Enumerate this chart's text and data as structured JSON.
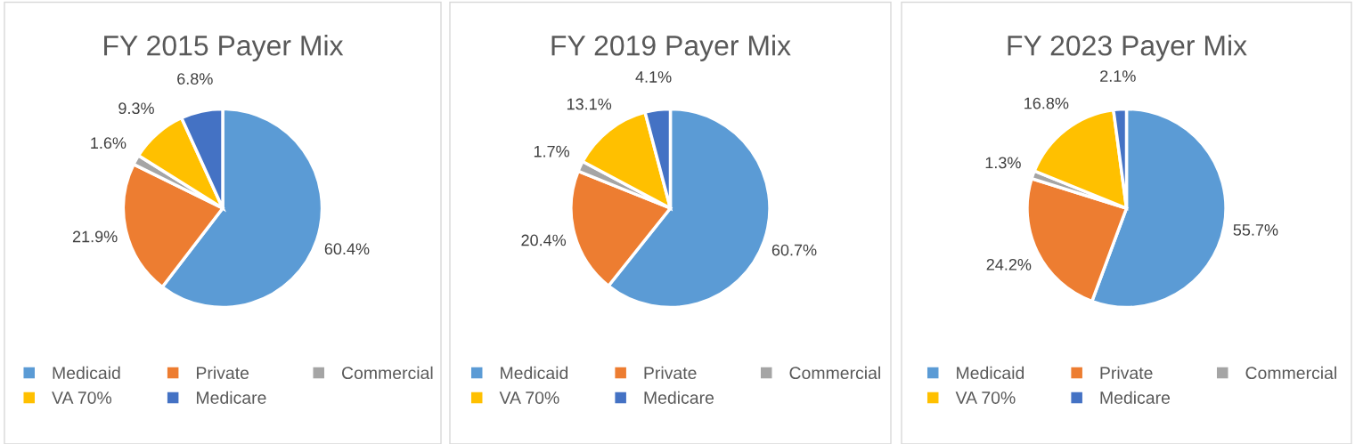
{
  "chart_data": [
    {
      "type": "pie",
      "title": "FY 2015 Payer Mix",
      "categories": [
        "Medicaid",
        "Private",
        "Commercial",
        "VA 70%",
        "Medicare"
      ],
      "values": [
        60.4,
        21.9,
        1.6,
        9.3,
        6.8
      ],
      "colors": [
        "#5b9bd5",
        "#ed7d31",
        "#a5a5a5",
        "#ffc000",
        "#4472c4"
      ],
      "value_labels": [
        "60.4%",
        "21.9%",
        "1.6%",
        "9.3%",
        "6.8%"
      ],
      "legend": "bottom"
    },
    {
      "type": "pie",
      "title": "FY 2019 Payer Mix",
      "categories": [
        "Medicaid",
        "Private",
        "Commercial",
        "VA 70%",
        "Medicare"
      ],
      "values": [
        60.7,
        20.4,
        1.7,
        13.1,
        4.1
      ],
      "colors": [
        "#5b9bd5",
        "#ed7d31",
        "#a5a5a5",
        "#ffc000",
        "#4472c4"
      ],
      "value_labels": [
        "60.7%",
        "20.4%",
        "1.7%",
        "13.1%",
        "4.1%"
      ],
      "legend": "bottom"
    },
    {
      "type": "pie",
      "title": "FY 2023 Payer Mix",
      "categories": [
        "Medicaid",
        "Private",
        "Commercial",
        "VA 70%",
        "Medicare"
      ],
      "values": [
        55.7,
        24.2,
        1.3,
        16.8,
        2.1
      ],
      "colors": [
        "#5b9bd5",
        "#ed7d31",
        "#a5a5a5",
        "#ffc000",
        "#4472c4"
      ],
      "value_labels": [
        "55.7%",
        "24.2%",
        "1.3%",
        "16.8%",
        "2.1%"
      ],
      "legend": "bottom"
    }
  ]
}
